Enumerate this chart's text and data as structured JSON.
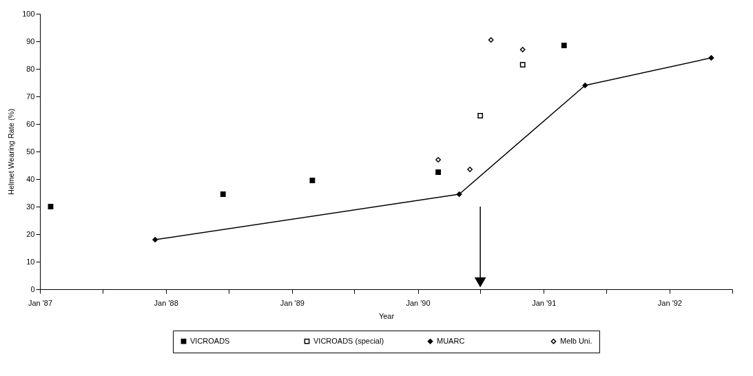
{
  "chart_data": {
    "type": "scatter",
    "xlabel": "Year",
    "ylabel": "Helmet Wearing Rate (%)",
    "xlim": [
      "1987-01-01",
      "1992-07-01"
    ],
    "xticks": [
      {
        "value": "1987-01-01",
        "label": "Jan '87"
      },
      {
        "value": "1987-07-01",
        "label": null
      },
      {
        "value": "1988-01-01",
        "label": "Jan '88"
      },
      {
        "value": "1988-07-01",
        "label": null
      },
      {
        "value": "1989-01-01",
        "label": "Jan '89"
      },
      {
        "value": "1989-07-01",
        "label": null
      },
      {
        "value": "1990-01-01",
        "label": "Jan '90"
      },
      {
        "value": "1990-07-01",
        "label": null
      },
      {
        "value": "1991-01-01",
        "label": "Jan '91"
      },
      {
        "value": "1991-07-01",
        "label": null
      },
      {
        "value": "1992-01-01",
        "label": "Jan '92"
      },
      {
        "value": "1992-07-01",
        "label": null
      }
    ],
    "ylim": [
      0,
      100
    ],
    "yticks": [
      0,
      10,
      20,
      30,
      40,
      50,
      60,
      70,
      80,
      90,
      100
    ],
    "grid": false,
    "legend": "bottom",
    "ref_lines": [
      {
        "axis": "x",
        "value": "1990-07-01"
      }
    ],
    "series": [
      {
        "name": "VICROADS",
        "marker": "square",
        "color": "#000000",
        "x": [
          "1987-02-01",
          "1988-06-15",
          "1989-03-01",
          "1990-03-01",
          "1991-03-01"
        ],
        "values": [
          30,
          34.5,
          39.5,
          42.5,
          88.5
        ]
      },
      {
        "name": "VICROADS (special)",
        "marker": "square",
        "color": "#ffffff",
        "x": [
          "1990-07-01",
          "1990-11-01"
        ],
        "values": [
          63,
          81.5
        ]
      },
      {
        "name": "MUARC",
        "type": "line",
        "marker": "diamond",
        "color": "#000000",
        "x": [
          "1987-12-01",
          "1990-05-01",
          "1991-05-01",
          "1992-05-01"
        ],
        "values": [
          18,
          34.5,
          74,
          84
        ]
      },
      {
        "name": "Melb Uni.",
        "marker": "diamond",
        "color": "#ffffff",
        "x": [
          "1990-03-01",
          "1990-06-01",
          "1990-08-01",
          "1990-11-01"
        ],
        "values": [
          47,
          43.5,
          90.5,
          87
        ]
      }
    ]
  }
}
